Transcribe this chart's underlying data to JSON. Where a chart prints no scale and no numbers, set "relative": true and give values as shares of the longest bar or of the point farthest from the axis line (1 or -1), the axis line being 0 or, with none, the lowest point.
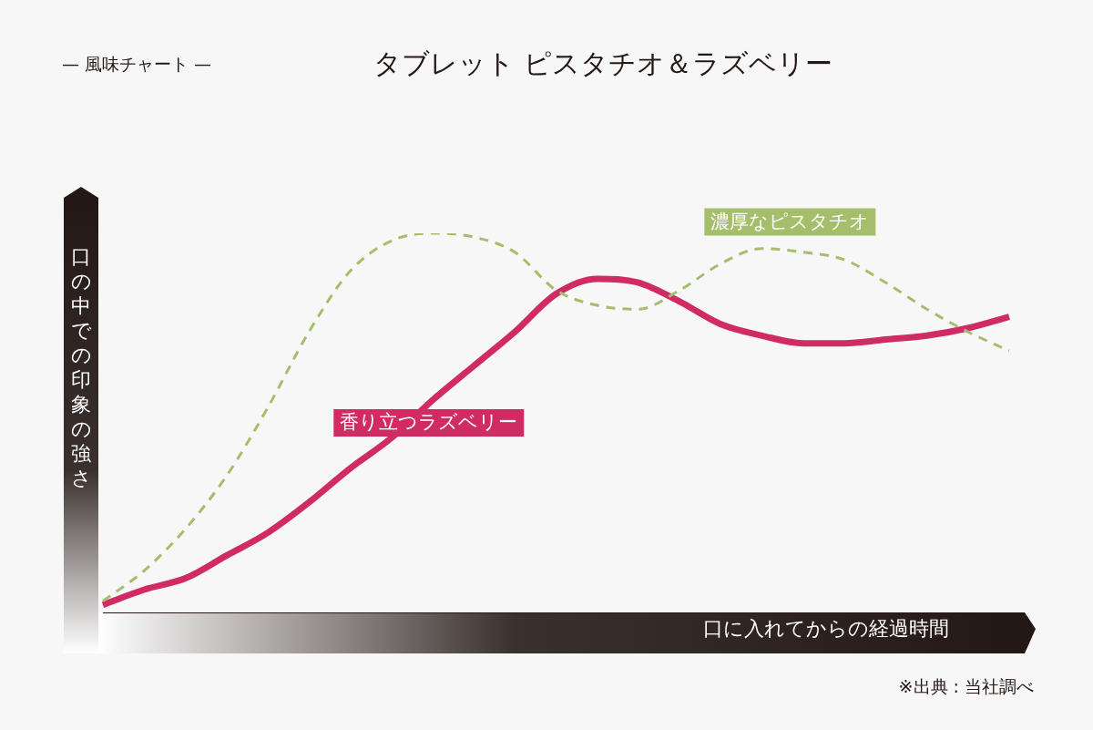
{
  "chart_data": {
    "type": "line",
    "title": "タブレット ピスタチオ＆ラズベリー",
    "subtitle": "— 風味チャート —",
    "xlabel": "口に入れてからの経過時間",
    "ylabel": "口の中での印象の強さ",
    "annotations": [
      "※出典 : 当社調べ"
    ],
    "relative": true,
    "marker": "none",
    "legend": false,
    "categories": [
      null,
      null,
      null,
      null,
      null,
      null,
      null,
      null,
      null,
      null,
      null,
      null,
      null,
      null,
      null,
      null,
      null,
      null,
      null,
      null,
      null,
      null,
      null
    ],
    "series": [
      {
        "name": "香り立つラズベリー",
        "color": "#d12b64",
        "line_style": "solid",
        "values": [
          0.02,
          0.06,
          0.09,
          0.15,
          0.21,
          0.29,
          0.38,
          0.46,
          0.56,
          0.65,
          0.74,
          0.84,
          0.88,
          0.87,
          0.82,
          0.76,
          0.73,
          0.71,
          0.71,
          0.72,
          0.73,
          0.75,
          0.78
        ]
      },
      {
        "name": "濃厚なピスタチオ",
        "color": "#a5be6b",
        "line_style": "dashed",
        "values": [
          0.03,
          0.11,
          0.22,
          0.36,
          0.54,
          0.74,
          0.9,
          0.98,
          1,
          0.99,
          0.95,
          0.85,
          0.81,
          0.8,
          0.85,
          0.92,
          0.96,
          0.95,
          0.93,
          0.87,
          0.8,
          0.74,
          0.69
        ]
      }
    ]
  }
}
